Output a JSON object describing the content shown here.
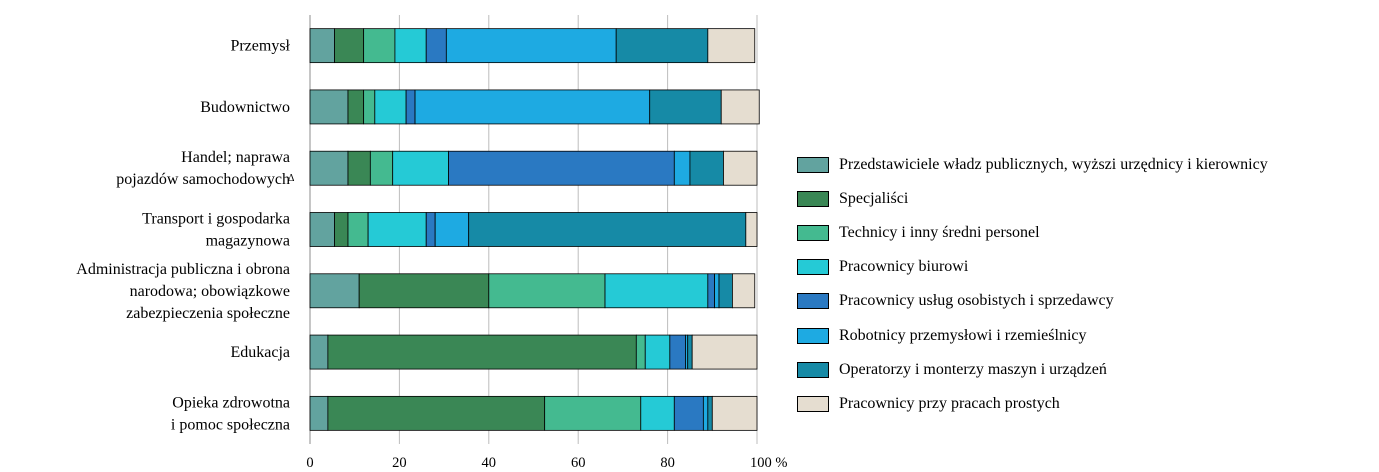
{
  "chart_data": {
    "type": "bar",
    "orientation": "horizontal",
    "stacked": true,
    "categories": [
      [
        "Przemysł"
      ],
      [
        "Budownictwo"
      ],
      [
        "Handel; naprawa",
        "pojazdów samochodowych"
      ],
      [
        "Transport i gospodarka",
        "magazynowa"
      ],
      [
        "Administracja publiczna i obrona",
        "narodowa; obowiązkowe",
        "zabezpieczenia społeczne"
      ],
      [
        "Edukacja"
      ],
      [
        "Opieka zdrowotna",
        "i pomoc społeczna"
      ]
    ],
    "category_marker": [
      "",
      "",
      "Δ",
      "",
      "",
      "",
      ""
    ],
    "series": [
      {
        "name": "Przedstawiciele władz publicznych, wyższi urzędnicy i kierownicy",
        "color": "#62a39f",
        "values": [
          5.5,
          8.5,
          8.5,
          5.5,
          11.0,
          4.0,
          4.0
        ]
      },
      {
        "name": "Specjaliści",
        "color": "#3a8755",
        "values": [
          6.5,
          3.5,
          5.0,
          3.0,
          29.0,
          69.0,
          48.5
        ]
      },
      {
        "name": "Technicy i inny średni personel",
        "color": "#44ba90",
        "values": [
          7.0,
          2.5,
          5.0,
          4.5,
          26.0,
          2.0,
          21.5
        ]
      },
      {
        "name": "Pracownicy biurowi",
        "color": "#25cad6",
        "values": [
          7.0,
          7.0,
          12.5,
          13.0,
          23.0,
          5.5,
          7.5
        ]
      },
      {
        "name": "Pracownicy usług osobistych i sprzedawcy",
        "color": "#2a79c2",
        "values": [
          4.5,
          2.0,
          50.5,
          2.0,
          1.5,
          3.5,
          6.5
        ]
      },
      {
        "name": "Robotnicy przemysłowi i rzemieślnicy",
        "color": "#1eaae2",
        "values": [
          38.0,
          52.5,
          3.5,
          7.5,
          1.0,
          0.5,
          1.0
        ]
      },
      {
        "name": "Operatorzy i monterzy maszyn i urządzeń",
        "color": "#168aa6",
        "values": [
          20.5,
          16.0,
          7.5,
          62.0,
          3.0,
          1.0,
          1.0
        ]
      },
      {
        "name": "Pracownicy przy pracach prostych",
        "color": "#e5ddd0",
        "values": [
          10.5,
          8.5,
          7.5,
          2.5,
          5.0,
          14.5,
          10.0
        ]
      }
    ],
    "xlim": [
      0,
      100
    ],
    "xticks": [
      "0",
      "20",
      "40",
      "60",
      "80",
      "100 %"
    ],
    "legend_position": "right"
  }
}
